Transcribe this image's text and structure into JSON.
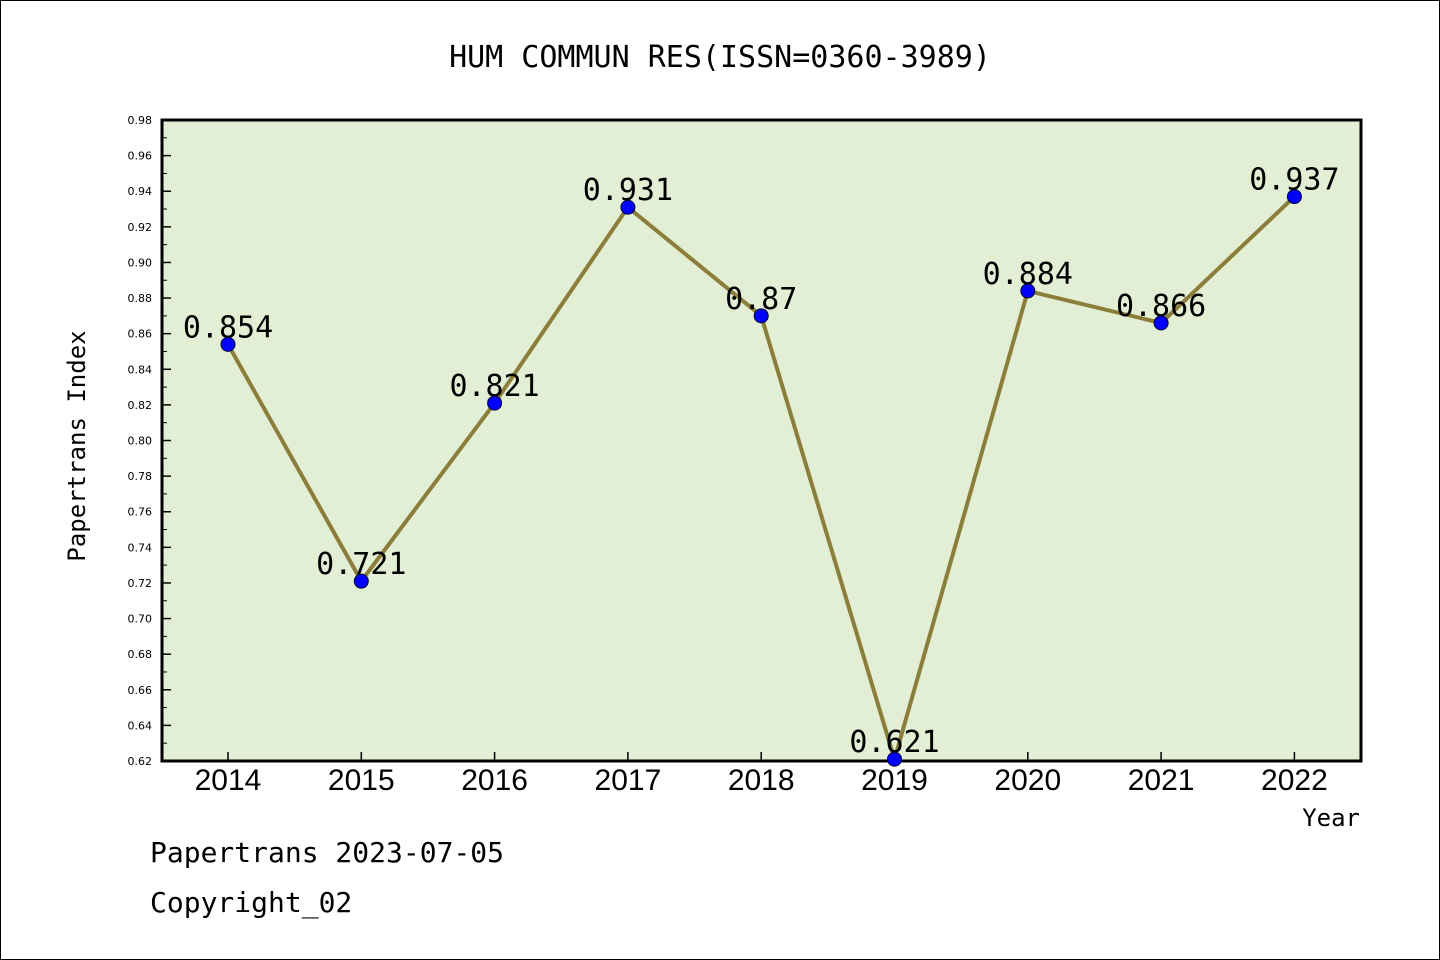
{
  "chart_data": {
    "type": "line",
    "title": "HUM COMMUN RES(ISSN=0360-3989)",
    "xlabel": "Year",
    "ylabel": "Papertrans Index",
    "categories": [
      "2014",
      "2015",
      "2016",
      "2017",
      "2018",
      "2019",
      "2020",
      "2021",
      "2022"
    ],
    "values": [
      0.854,
      0.721,
      0.821,
      0.931,
      0.87,
      0.621,
      0.884,
      0.866,
      0.937
    ],
    "data_labels": [
      "0.854",
      "0.721",
      "0.821",
      "0.931",
      "0.87",
      "0.621",
      "0.884",
      "0.866",
      "0.937"
    ],
    "ylim": [
      0.62,
      0.98
    ],
    "yticks": [
      "0.62",
      "0.64",
      "0.66",
      "0.68",
      "0.70",
      "0.72",
      "0.74",
      "0.76",
      "0.78",
      "0.80",
      "0.82",
      "0.84",
      "0.86",
      "0.88",
      "0.90",
      "0.92",
      "0.94",
      "0.96",
      "0.98"
    ],
    "grid": false,
    "colors": {
      "plot_background": "#e2efd5",
      "line": "#8b7d3a",
      "marker": "#0000ff"
    }
  },
  "footer": {
    "line1": "Papertrans 2023-07-05",
    "line2": "Copyright_02"
  }
}
